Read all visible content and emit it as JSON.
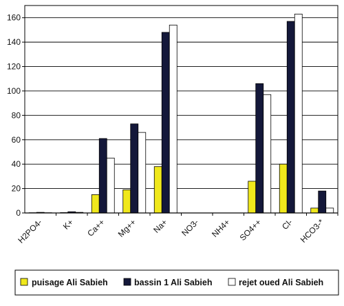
{
  "chart_data": {
    "type": "bar",
    "title": "",
    "xlabel": "",
    "ylabel": "",
    "ylim": [
      0,
      170
    ],
    "yticks": [
      0,
      20,
      40,
      60,
      80,
      100,
      120,
      140,
      160
    ],
    "ytick_labels": [
      "0",
      "20",
      "40",
      "60",
      "80",
      "100",
      "120",
      "140",
      "160"
    ],
    "grid": true,
    "legend_position": "bottom",
    "categories": [
      "H2PO4-",
      "K+",
      "Ca++",
      "Mg++",
      "Na+",
      "NO3-",
      "NH4+",
      "SO4++",
      "Cl-",
      "HCO3-*"
    ],
    "series": [
      {
        "name": "puisage Ali Sabieh",
        "color": "#f0e81c",
        "values": [
          0.2,
          0.3,
          15,
          19,
          38,
          0,
          0,
          26,
          40,
          4
        ]
      },
      {
        "name": "bassin 1 Ali Sabieh",
        "color": "#14183a",
        "values": [
          0.5,
          1,
          61,
          73,
          148,
          0,
          0,
          106,
          157,
          18
        ]
      },
      {
        "name": "rejet oued Ali Sabieh",
        "color": "#ffffff",
        "values": [
          0.2,
          0.5,
          45,
          66,
          154,
          0,
          0,
          97,
          163,
          4
        ]
      }
    ]
  }
}
